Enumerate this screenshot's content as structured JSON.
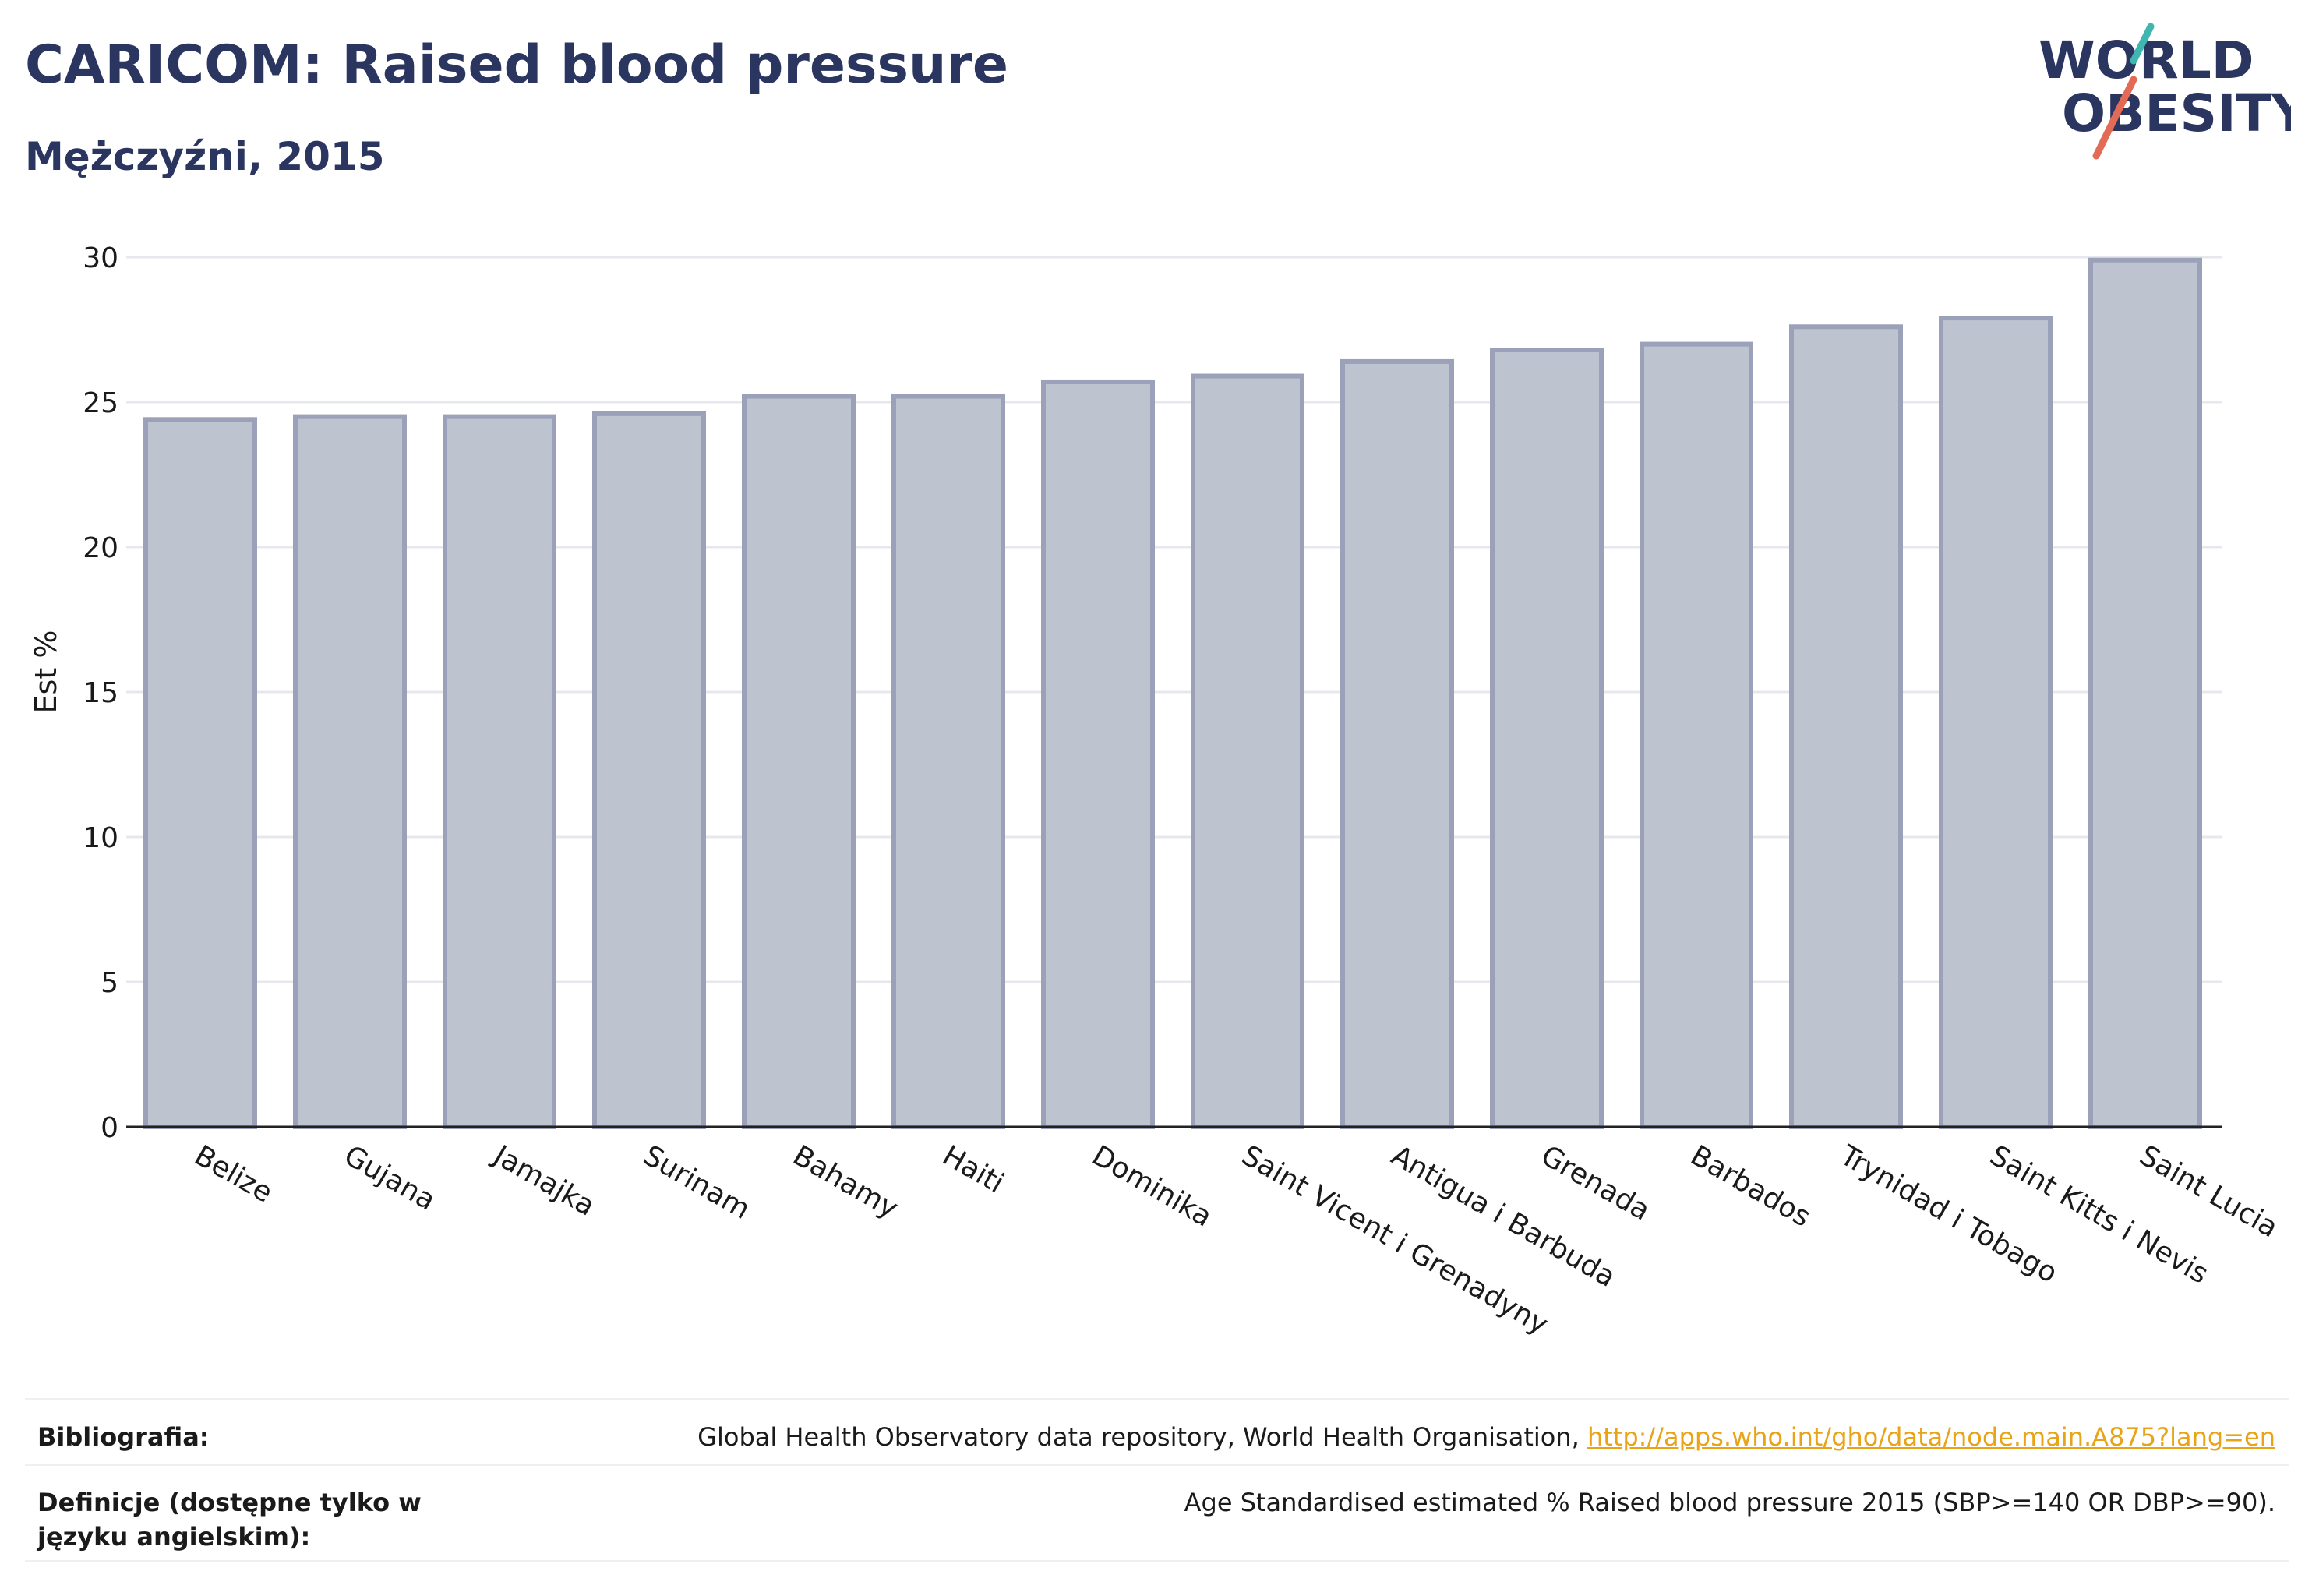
{
  "header": {
    "title": "CARICOM: Raised blood pressure",
    "subtitle": "Mężczyźni, 2015"
  },
  "logo": {
    "line1": "WORLD",
    "line2": "OBESITY"
  },
  "colors": {
    "title": "#2a3560",
    "bar_fill": "#bec3d0",
    "bar_stroke": "#9aa1b8",
    "grid": "#e6e8ee",
    "link": "#e8a317",
    "logo_teal": "#3fb6b0",
    "logo_coral": "#e36a55"
  },
  "chart_data": {
    "type": "bar",
    "categories": [
      "Belize",
      "Gujana",
      "Jamajka",
      "Surinam",
      "Bahamy",
      "Haiti",
      "Dominika",
      "Saint Vicent i Grenadyny",
      "Antigua i Barbuda",
      "Grenada",
      "Barbados",
      "Trynidad i Tobago",
      "Saint Kitts i Nevis",
      "Saint Lucia"
    ],
    "values": [
      24.4,
      24.5,
      24.5,
      24.6,
      25.2,
      25.2,
      25.7,
      25.9,
      26.4,
      26.8,
      27.0,
      27.6,
      27.9,
      29.9
    ],
    "ylabel": "Est %",
    "xlabel": "",
    "ylim": [
      0,
      30
    ],
    "yticks": [
      0,
      5,
      10,
      15,
      20,
      25,
      30
    ],
    "grid": true,
    "legend": "none"
  },
  "footer": {
    "bibliography_label": "Bibliografia:",
    "bibliography_text": "Global Health Observatory data repository, World Health Organisation, ",
    "bibliography_link": "http://apps.who.int/gho/data/node.main.A875?lang=en",
    "definitions_label": "Definicje (dostępne tylko w języku angielskim):",
    "definitions_text": "Age Standardised estimated % Raised blood pressure 2015 (SBP>=140 OR DBP>=90)."
  }
}
